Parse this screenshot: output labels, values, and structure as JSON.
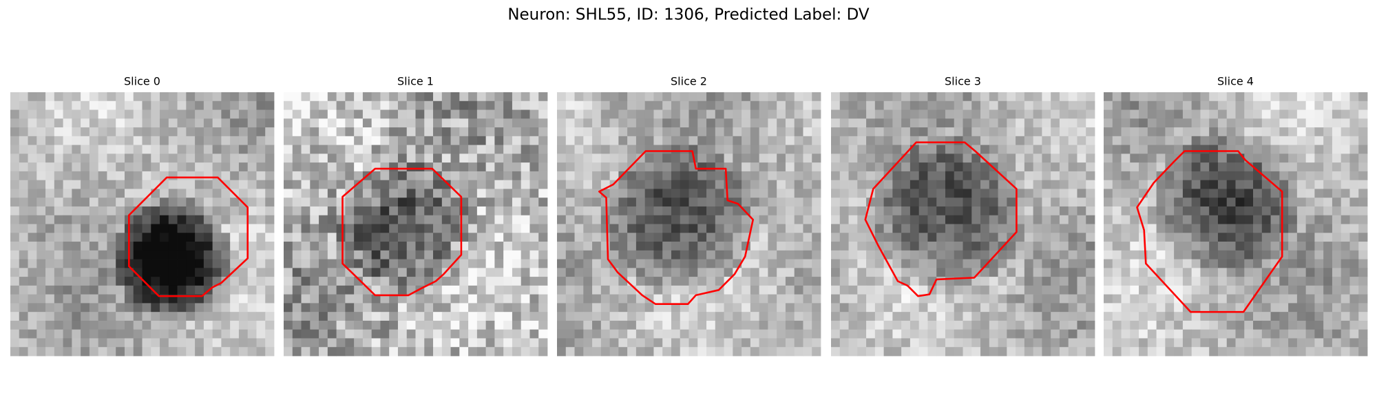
{
  "figure": {
    "title": "Neuron: SHL55, ID: 1306, Predicted Label: DV",
    "panels": [
      {
        "label": "Slice 0"
      },
      {
        "label": "Slice 1"
      },
      {
        "label": "Slice 2"
      },
      {
        "label": "Slice 3"
      },
      {
        "label": "Slice 4"
      }
    ]
  }
}
